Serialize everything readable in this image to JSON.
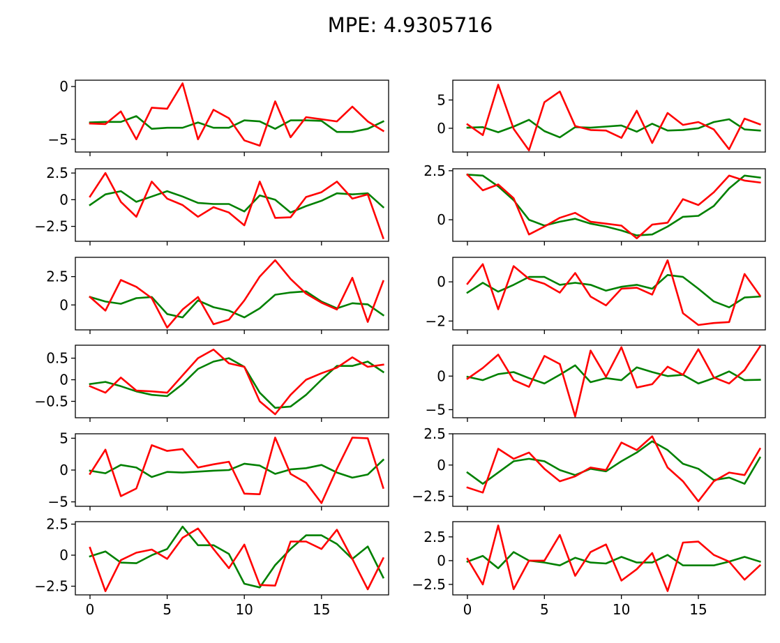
{
  "figure": {
    "title": "MPE: 4.9305716",
    "colors": {
      "series_green": "#008000",
      "series_red": "#ff0000",
      "axes": "#000000",
      "background": "#ffffff"
    }
  },
  "chart_data": [
    {
      "type": "line",
      "ylim": [
        -6.2,
        0.6
      ],
      "yticks": [
        0,
        -5
      ],
      "grid": false,
      "x": [
        0,
        1,
        2,
        3,
        4,
        5,
        6,
        7,
        8,
        9,
        10,
        11,
        12,
        13,
        14,
        15,
        16,
        17,
        18,
        19
      ],
      "series": [
        {
          "color": "#008000",
          "values": [
            -3.4,
            -3.35,
            -3.35,
            -2.8,
            -4.0,
            -3.9,
            -3.9,
            -3.4,
            -3.9,
            -3.9,
            -3.2,
            -3.3,
            -4.0,
            -3.2,
            -3.2,
            -3.25,
            -4.3,
            -4.3,
            -4.0,
            -3.3
          ]
        },
        {
          "color": "#ff0000",
          "values": [
            -3.5,
            -3.55,
            -2.35,
            -5.0,
            -2.0,
            -2.1,
            0.3,
            -5.0,
            -2.2,
            -3.0,
            -5.1,
            -5.6,
            -1.4,
            -4.8,
            -2.9,
            -3.1,
            -3.3,
            -1.9,
            -3.3,
            -4.2
          ]
        }
      ]
    },
    {
      "type": "line",
      "ylim": [
        -4.2,
        8.5
      ],
      "yticks": [
        5,
        0
      ],
      "grid": false,
      "x": [
        0,
        1,
        2,
        3,
        4,
        5,
        6,
        7,
        8,
        9,
        10,
        11,
        12,
        13,
        14,
        15,
        16,
        17,
        18,
        19
      ],
      "series": [
        {
          "color": "#008000",
          "values": [
            0.1,
            0.2,
            -0.7,
            0.3,
            1.5,
            -0.5,
            -1.6,
            0.2,
            0.1,
            0.3,
            0.5,
            -0.6,
            0.8,
            -0.4,
            -0.3,
            0.0,
            1.1,
            1.6,
            -0.2,
            -0.4
          ]
        },
        {
          "color": "#ff0000",
          "values": [
            0.7,
            -1.2,
            7.7,
            -0.1,
            -3.9,
            4.6,
            6.5,
            0.4,
            -0.3,
            -0.4,
            -1.7,
            3.1,
            -2.6,
            2.7,
            0.6,
            1.1,
            -0.2,
            -3.7,
            1.7,
            0.7
          ]
        }
      ]
    },
    {
      "type": "line",
      "ylim": [
        -3.9,
        2.9
      ],
      "yticks": [
        2.5,
        0.0,
        -2.5
      ],
      "grid": false,
      "x": [
        0,
        1,
        2,
        3,
        4,
        5,
        6,
        7,
        8,
        9,
        10,
        11,
        12,
        13,
        14,
        15,
        16,
        17,
        18,
        19
      ],
      "series": [
        {
          "color": "#008000",
          "values": [
            -0.5,
            0.5,
            0.8,
            -0.2,
            0.3,
            0.8,
            0.3,
            -0.3,
            -0.4,
            -0.4,
            -1.1,
            0.4,
            0.0,
            -1.2,
            -0.6,
            -0.1,
            0.6,
            0.5,
            0.6,
            -0.7
          ]
        },
        {
          "color": "#ff0000",
          "values": [
            0.3,
            2.5,
            -0.2,
            -1.6,
            1.7,
            0.1,
            -0.5,
            -1.6,
            -0.7,
            -1.2,
            -2.4,
            1.7,
            -1.7,
            -1.65,
            0.25,
            0.7,
            1.7,
            0.1,
            0.5,
            -3.6
          ]
        }
      ]
    },
    {
      "type": "line",
      "ylim": [
        -1.1,
        2.6
      ],
      "yticks": [
        2.5,
        0.0
      ],
      "grid": false,
      "x": [
        0,
        1,
        2,
        3,
        4,
        5,
        6,
        7,
        8,
        9,
        10,
        11,
        12,
        13,
        14,
        15,
        16,
        17,
        18,
        19
      ],
      "series": [
        {
          "color": "#008000",
          "values": [
            2.3,
            2.25,
            1.7,
            1.0,
            0.0,
            -0.3,
            -0.1,
            0.05,
            -0.2,
            -0.35,
            -0.55,
            -0.8,
            -0.75,
            -0.35,
            0.15,
            0.2,
            0.7,
            1.6,
            2.25,
            2.15
          ]
        },
        {
          "color": "#ff0000",
          "values": [
            2.3,
            1.5,
            1.8,
            1.1,
            -0.75,
            -0.35,
            0.1,
            0.35,
            -0.1,
            -0.2,
            -0.3,
            -0.95,
            -0.25,
            -0.15,
            1.05,
            0.75,
            1.4,
            2.25,
            2.0,
            1.9
          ]
        }
      ]
    },
    {
      "type": "line",
      "ylim": [
        -2.2,
        4.2
      ],
      "yticks": [
        2.5,
        0.0
      ],
      "grid": false,
      "x": [
        0,
        1,
        2,
        3,
        4,
        5,
        6,
        7,
        8,
        9,
        10,
        11,
        12,
        13,
        14,
        15,
        16,
        17,
        18,
        19
      ],
      "series": [
        {
          "color": "#008000",
          "values": [
            0.7,
            0.3,
            0.1,
            0.6,
            0.7,
            -0.8,
            -1.1,
            0.4,
            -0.2,
            -0.5,
            -1.1,
            -0.3,
            0.9,
            1.1,
            1.2,
            0.3,
            -0.3,
            0.15,
            0.05,
            -0.9
          ]
        },
        {
          "color": "#ff0000",
          "values": [
            0.7,
            -0.5,
            2.2,
            1.6,
            0.6,
            -2.0,
            -0.4,
            0.7,
            -1.7,
            -1.3,
            0.4,
            2.5,
            3.95,
            2.3,
            1.0,
            0.2,
            -0.4,
            2.4,
            -1.5,
            2.1
          ]
        }
      ]
    },
    {
      "type": "line",
      "ylim": [
        -2.45,
        1.25
      ],
      "yticks": [
        0,
        -2
      ],
      "grid": false,
      "x": [
        0,
        1,
        2,
        3,
        4,
        5,
        6,
        7,
        8,
        9,
        10,
        11,
        12,
        13,
        14,
        15,
        16,
        17,
        18,
        19
      ],
      "series": [
        {
          "color": "#008000",
          "values": [
            -0.55,
            -0.05,
            -0.5,
            -0.15,
            0.25,
            0.25,
            -0.15,
            -0.05,
            -0.15,
            -0.45,
            -0.25,
            -0.15,
            -0.35,
            0.35,
            0.25,
            -0.35,
            -1.0,
            -1.3,
            -0.8,
            -0.75
          ]
        },
        {
          "color": "#ff0000",
          "values": [
            -0.1,
            0.9,
            -1.4,
            0.8,
            0.15,
            -0.1,
            -0.55,
            0.45,
            -0.75,
            -1.2,
            -0.35,
            -0.3,
            -0.65,
            1.1,
            -1.6,
            -2.2,
            -2.1,
            -2.05,
            0.4,
            -0.7
          ]
        }
      ]
    },
    {
      "type": "line",
      "ylim": [
        -0.88,
        0.8
      ],
      "yticks": [
        0.5,
        0.0,
        -0.5
      ],
      "grid": false,
      "x": [
        0,
        1,
        2,
        3,
        4,
        5,
        6,
        7,
        8,
        9,
        10,
        11,
        12,
        13,
        14,
        15,
        16,
        17,
        18,
        19
      ],
      "series": [
        {
          "color": "#008000",
          "values": [
            -0.1,
            -0.05,
            -0.15,
            -0.27,
            -0.35,
            -0.38,
            -0.1,
            0.25,
            0.42,
            0.5,
            0.3,
            -0.3,
            -0.65,
            -0.62,
            -0.35,
            0.0,
            0.32,
            0.32,
            0.42,
            0.18
          ]
        },
        {
          "color": "#ff0000",
          "values": [
            -0.15,
            -0.3,
            0.05,
            -0.25,
            -0.27,
            -0.3,
            0.1,
            0.5,
            0.7,
            0.38,
            0.3,
            -0.5,
            -0.8,
            -0.35,
            0.0,
            0.15,
            0.28,
            0.52,
            0.3,
            0.35
          ]
        }
      ]
    },
    {
      "type": "line",
      "ylim": [
        -6.2,
        4.6
      ],
      "yticks": [
        0,
        -5
      ],
      "grid": false,
      "x": [
        0,
        1,
        2,
        3,
        4,
        5,
        6,
        7,
        8,
        9,
        10,
        11,
        12,
        13,
        14,
        15,
        16,
        17,
        18,
        19
      ],
      "series": [
        {
          "color": "#008000",
          "values": [
            -0.1,
            -0.6,
            0.3,
            0.6,
            -0.3,
            -1.1,
            0.2,
            1.6,
            -0.9,
            -0.3,
            -0.6,
            1.3,
            0.6,
            0.0,
            0.2,
            -1.1,
            -0.3,
            0.7,
            -0.6,
            -0.55
          ]
        },
        {
          "color": "#ff0000",
          "values": [
            -0.4,
            1.2,
            3.2,
            -0.6,
            -1.6,
            3.0,
            1.8,
            -6.0,
            3.8,
            -0.1,
            4.3,
            -1.7,
            -1.2,
            1.4,
            0.2,
            4.0,
            -0.2,
            -1.1,
            0.9,
            4.4
          ]
        }
      ]
    },
    {
      "type": "line",
      "ylim": [
        -5.7,
        5.7
      ],
      "yticks": [
        5,
        0,
        -5
      ],
      "grid": false,
      "x": [
        0,
        1,
        2,
        3,
        4,
        5,
        6,
        7,
        8,
        9,
        10,
        11,
        12,
        13,
        14,
        15,
        16,
        17,
        18,
        19
      ],
      "series": [
        {
          "color": "#008000",
          "values": [
            -0.1,
            -0.5,
            0.8,
            0.4,
            -1.1,
            -0.3,
            -0.4,
            -0.25,
            -0.1,
            0.0,
            1.0,
            0.7,
            -0.6,
            0.1,
            0.3,
            0.8,
            -0.4,
            -1.2,
            -0.7,
            1.6
          ]
        },
        {
          "color": "#ff0000",
          "values": [
            -0.6,
            3.2,
            -4.1,
            -2.9,
            3.9,
            3.0,
            3.3,
            0.4,
            0.9,
            1.3,
            -3.7,
            -3.8,
            5.1,
            -0.6,
            -2.0,
            -5.2,
            0.2,
            5.1,
            5.0,
            -2.8
          ]
        }
      ]
    },
    {
      "type": "line",
      "ylim": [
        -3.3,
        2.5
      ],
      "yticks": [
        2.5,
        0.0,
        -2.5
      ],
      "grid": false,
      "x": [
        0,
        1,
        2,
        3,
        4,
        5,
        6,
        7,
        8,
        9,
        10,
        11,
        12,
        13,
        14,
        15,
        16,
        17,
        18,
        19
      ],
      "series": [
        {
          "color": "#008000",
          "values": [
            -0.6,
            -1.5,
            -0.6,
            0.3,
            0.5,
            0.3,
            -0.4,
            -0.8,
            -0.3,
            -0.5,
            0.3,
            1.0,
            1.9,
            1.2,
            0.1,
            -0.3,
            -1.2,
            -1.0,
            -1.5,
            0.6
          ]
        },
        {
          "color": "#ff0000",
          "values": [
            -1.8,
            -2.2,
            1.3,
            0.5,
            1.0,
            -0.3,
            -1.3,
            -0.9,
            -0.2,
            -0.4,
            1.8,
            1.2,
            2.3,
            -0.2,
            -1.3,
            -2.9,
            -1.3,
            -0.6,
            -0.8,
            1.3
          ]
        }
      ]
    },
    {
      "type": "line",
      "ylim": [
        -3.2,
        2.7
      ],
      "yticks": [
        2.5,
        0.0,
        -2.5
      ],
      "grid": false,
      "x": [
        0,
        1,
        2,
        3,
        4,
        5,
        6,
        7,
        8,
        9,
        10,
        11,
        12,
        13,
        14,
        15,
        16,
        17,
        18,
        19
      ],
      "series": [
        {
          "color": "#008000",
          "values": [
            -0.1,
            0.3,
            -0.6,
            -0.65,
            0.0,
            0.5,
            2.3,
            0.8,
            0.8,
            0.1,
            -2.3,
            -2.6,
            -0.8,
            0.5,
            1.6,
            1.6,
            0.9,
            -0.3,
            0.7,
            -1.8
          ]
        },
        {
          "color": "#ff0000",
          "values": [
            0.6,
            -2.9,
            -0.4,
            0.2,
            0.45,
            -0.3,
            1.4,
            2.15,
            0.5,
            -1.05,
            0.85,
            -2.4,
            -2.45,
            1.1,
            1.1,
            0.5,
            2.05,
            -0.3,
            -2.75,
            -0.25
          ]
        }
      ]
    },
    {
      "type": "line",
      "ylim": [
        -3.6,
        4.1
      ],
      "yticks": [
        2.5,
        0.0,
        -2.5
      ],
      "grid": false,
      "x": [
        0,
        1,
        2,
        3,
        4,
        5,
        6,
        7,
        8,
        9,
        10,
        11,
        12,
        13,
        14,
        15,
        16,
        17,
        18,
        19
      ],
      "series": [
        {
          "color": "#008000",
          "values": [
            -0.1,
            0.5,
            -0.8,
            0.9,
            0.0,
            -0.2,
            -0.5,
            0.3,
            -0.2,
            -0.3,
            0.4,
            -0.2,
            -0.2,
            0.6,
            -0.5,
            -0.5,
            -0.5,
            -0.1,
            0.4,
            -0.1
          ]
        },
        {
          "color": "#ff0000",
          "values": [
            0.2,
            -2.5,
            3.7,
            -3.0,
            0.0,
            0.0,
            2.7,
            -1.6,
            0.9,
            1.7,
            -2.1,
            -0.9,
            0.8,
            -3.2,
            1.9,
            2.0,
            0.6,
            -0.1,
            -2.0,
            -0.5
          ]
        }
      ]
    }
  ],
  "x_axis": {
    "ticks": [
      0,
      5,
      10,
      15
    ],
    "xlim": [
      -0.95,
      19.35
    ]
  }
}
